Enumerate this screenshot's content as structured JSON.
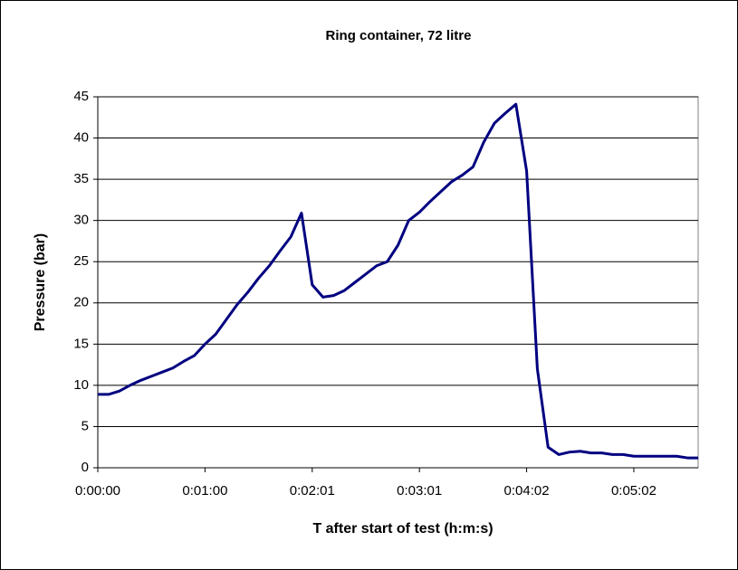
{
  "chart_data": {
    "type": "line",
    "title": "Ring container, 72 litre",
    "x_label": "T after start of test (h:m:s)",
    "y_label": "Pressure (bar)",
    "categories": [
      "0:00:00",
      null,
      null,
      null,
      null,
      null,
      null,
      null,
      null,
      null,
      "0:01:00",
      null,
      null,
      null,
      null,
      null,
      null,
      null,
      null,
      null,
      "0:02:01",
      null,
      null,
      null,
      null,
      null,
      null,
      null,
      null,
      null,
      "0:03:01",
      null,
      null,
      null,
      null,
      null,
      null,
      null,
      null,
      null,
      "0:04:02",
      null,
      null,
      null,
      null,
      null,
      null,
      null,
      null,
      null,
      "0:05:02",
      null,
      null,
      null,
      null,
      null,
      null
    ],
    "series": [
      {
        "name": "Pressure",
        "color": "#000080",
        "values": [
          8.9,
          8.9,
          9.3,
          10.0,
          10.6,
          11.1,
          11.6,
          12.1,
          12.9,
          13.6,
          15.0,
          16.2,
          18.0,
          19.8,
          21.3,
          23.0,
          24.5,
          26.3,
          28.0,
          30.9,
          22.2,
          20.7,
          20.9,
          21.5,
          22.5,
          23.5,
          24.5,
          25.0,
          27.0,
          30.0,
          31.0,
          32.3,
          33.5,
          34.7,
          35.5,
          36.5,
          39.5,
          41.8,
          43.0,
          44.1,
          36.0,
          12.0,
          2.5,
          1.6,
          1.9,
          2.0,
          1.8,
          1.8,
          1.6,
          1.6,
          1.4,
          1.4,
          1.4,
          1.4,
          1.4,
          1.2,
          1.2
        ]
      }
    ],
    "ylim": [
      0,
      45
    ],
    "yticks": [
      0,
      5,
      10,
      15,
      20,
      25,
      30,
      35,
      40,
      45
    ],
    "grid": true
  }
}
